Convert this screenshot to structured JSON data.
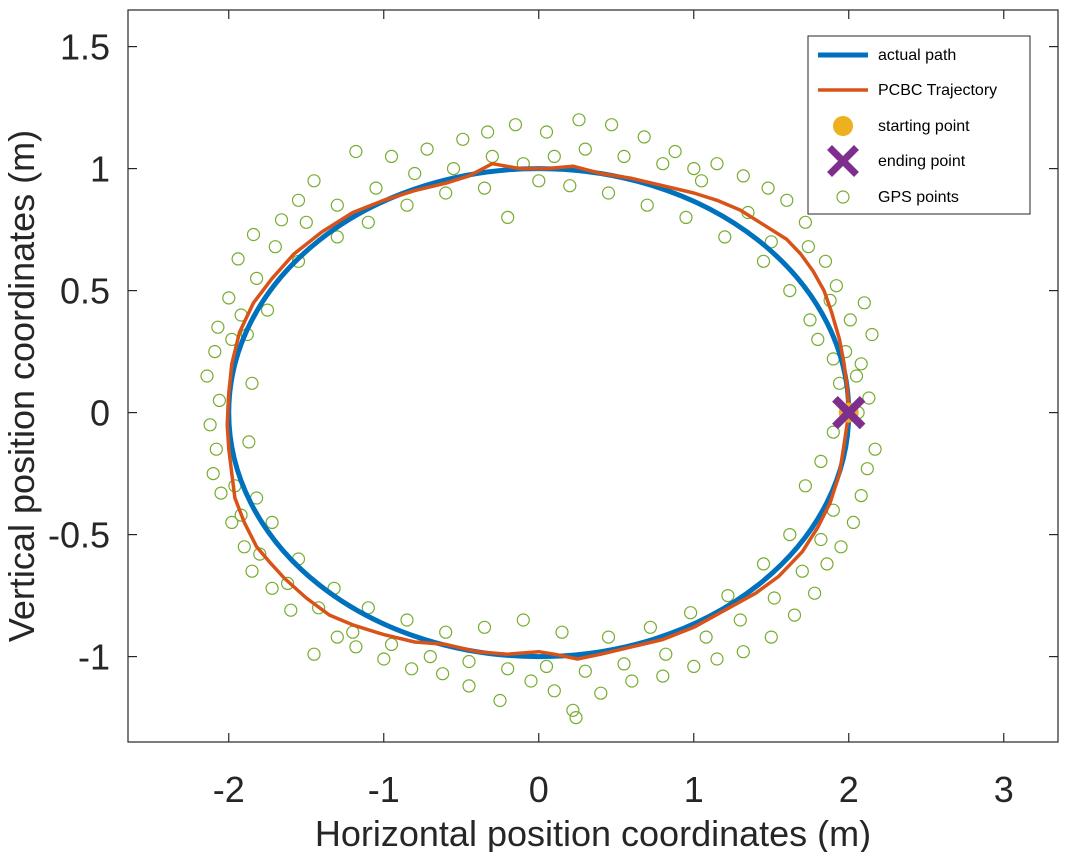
{
  "chart_data": {
    "type": "scatter",
    "xlabel": "Horizontal position coordinates (m)",
    "ylabel": "Vertical position coordinates (m)",
    "xlim": [
      -2.65,
      3.35
    ],
    "ylim": [
      -1.35,
      1.65
    ],
    "xticks": [
      -2,
      -1,
      0,
      1,
      2,
      3
    ],
    "yticks": [
      -1,
      -0.5,
      0,
      0.5,
      1,
      1.5
    ],
    "xtick_labels": [
      "-2",
      "-1",
      "0",
      "1",
      "2",
      "3"
    ],
    "ytick_labels": [
      "-1",
      "-0.5",
      "0",
      "0.5",
      "1",
      "1.5"
    ],
    "grid": false,
    "box": true,
    "legend_position": "top-right",
    "colors": {
      "actual_path": "#0072BD",
      "pcbc": "#D95319",
      "start": "#EDB120",
      "end": "#7E2F8E",
      "gps": "#77AC30",
      "axes": "#262626"
    },
    "series": [
      {
        "name": "actual path",
        "kind": "line",
        "shape": "ellipse",
        "center": [
          0,
          0
        ],
        "radius_x": 2,
        "radius_y": 1
      },
      {
        "name": "PCBC Trajectory",
        "kind": "line",
        "points": [
          [
            2.0,
            0.0
          ],
          [
            1.99,
            0.1
          ],
          [
            1.97,
            0.2
          ],
          [
            1.94,
            0.3
          ],
          [
            1.89,
            0.41
          ],
          [
            1.84,
            0.5
          ],
          [
            1.77,
            0.58
          ],
          [
            1.69,
            0.65
          ],
          [
            1.6,
            0.71
          ],
          [
            1.45,
            0.77
          ],
          [
            1.3,
            0.83
          ],
          [
            1.15,
            0.87
          ],
          [
            1.0,
            0.9
          ],
          [
            0.8,
            0.93
          ],
          [
            0.6,
            0.96
          ],
          [
            0.4,
            0.98
          ],
          [
            0.22,
            1.01
          ],
          [
            0.05,
            1.0
          ],
          [
            -0.12,
            1.0
          ],
          [
            -0.3,
            1.02
          ],
          [
            -0.45,
            0.97
          ],
          [
            -0.6,
            0.94
          ],
          [
            -0.8,
            0.91
          ],
          [
            -1.0,
            0.87
          ],
          [
            -1.2,
            0.82
          ],
          [
            -1.4,
            0.74
          ],
          [
            -1.58,
            0.65
          ],
          [
            -1.72,
            0.55
          ],
          [
            -1.84,
            0.45
          ],
          [
            -1.93,
            0.33
          ],
          [
            -1.98,
            0.2
          ],
          [
            -2.0,
            0.08
          ],
          [
            -2.01,
            -0.05
          ],
          [
            -2.0,
            -0.15
          ],
          [
            -1.98,
            -0.25
          ],
          [
            -1.96,
            -0.35
          ],
          [
            -1.9,
            -0.45
          ],
          [
            -1.82,
            -0.55
          ],
          [
            -1.74,
            -0.61
          ],
          [
            -1.64,
            -0.68
          ],
          [
            -1.5,
            -0.76
          ],
          [
            -1.35,
            -0.83
          ],
          [
            -1.2,
            -0.87
          ],
          [
            -1.0,
            -0.91
          ],
          [
            -0.8,
            -0.94
          ],
          [
            -0.6,
            -0.95
          ],
          [
            -0.4,
            -0.98
          ],
          [
            -0.2,
            -0.99
          ],
          [
            0.0,
            -0.98
          ],
          [
            0.1,
            -0.99
          ],
          [
            0.25,
            -1.01
          ],
          [
            0.4,
            -0.99
          ],
          [
            0.6,
            -0.96
          ],
          [
            0.8,
            -0.93
          ],
          [
            1.0,
            -0.88
          ],
          [
            1.2,
            -0.81
          ],
          [
            1.4,
            -0.74
          ],
          [
            1.55,
            -0.67
          ],
          [
            1.7,
            -0.57
          ],
          [
            1.8,
            -0.47
          ],
          [
            1.88,
            -0.37
          ],
          [
            1.94,
            -0.25
          ],
          [
            1.97,
            -0.13
          ],
          [
            2.0,
            0.0
          ]
        ]
      },
      {
        "name": "starting point",
        "kind": "marker",
        "marker": "filled-circle",
        "points": [
          [
            2.0,
            0.0
          ]
        ]
      },
      {
        "name": "ending point",
        "kind": "marker",
        "marker": "x",
        "points": [
          [
            2.0,
            0.0
          ]
        ]
      },
      {
        "name": "GPS points",
        "kind": "scatter",
        "marker": "open-circle",
        "points": [
          [
            2.06,
            0.0
          ],
          [
            2.13,
            0.06
          ],
          [
            2.17,
            -0.15
          ],
          [
            1.98,
            0.25
          ],
          [
            2.01,
            0.38
          ],
          [
            1.88,
            0.46
          ],
          [
            1.92,
            0.52
          ],
          [
            1.85,
            0.62
          ],
          [
            1.74,
            0.68
          ],
          [
            1.72,
            0.78
          ],
          [
            1.6,
            0.87
          ],
          [
            1.48,
            0.92
          ],
          [
            1.32,
            0.97
          ],
          [
            1.15,
            1.02
          ],
          [
            1.0,
            1.0
          ],
          [
            0.88,
            1.07
          ],
          [
            0.68,
            1.13
          ],
          [
            0.47,
            1.18
          ],
          [
            0.26,
            1.2
          ],
          [
            0.05,
            1.15
          ],
          [
            -0.15,
            1.18
          ],
          [
            -0.33,
            1.15
          ],
          [
            -0.49,
            1.12
          ],
          [
            -0.72,
            1.08
          ],
          [
            -0.95,
            1.05
          ],
          [
            -1.18,
            1.07
          ],
          [
            -1.45,
            0.95
          ],
          [
            -1.55,
            0.87
          ],
          [
            -1.66,
            0.79
          ],
          [
            -1.84,
            0.73
          ],
          [
            -1.94,
            0.63
          ],
          [
            -2.0,
            0.47
          ],
          [
            -2.07,
            0.35
          ],
          [
            -2.09,
            0.25
          ],
          [
            -2.14,
            0.15
          ],
          [
            -2.06,
            0.05
          ],
          [
            -2.12,
            -0.05
          ],
          [
            -2.08,
            -0.15
          ],
          [
            -2.1,
            -0.25
          ],
          [
            -2.05,
            -0.33
          ],
          [
            -1.98,
            -0.45
          ],
          [
            -1.9,
            -0.55
          ],
          [
            -1.85,
            -0.65
          ],
          [
            -1.72,
            -0.72
          ],
          [
            -1.6,
            -0.81
          ],
          [
            -1.45,
            -0.99
          ],
          [
            -1.3,
            -0.92
          ],
          [
            -1.18,
            -0.96
          ],
          [
            -1.0,
            -1.01
          ],
          [
            -0.82,
            -1.05
          ],
          [
            -0.62,
            -1.07
          ],
          [
            -0.45,
            -1.12
          ],
          [
            -0.25,
            -1.18
          ],
          [
            -0.05,
            -1.1
          ],
          [
            0.1,
            -1.14
          ],
          [
            0.22,
            -1.22
          ],
          [
            0.24,
            -1.25
          ],
          [
            0.4,
            -1.15
          ],
          [
            0.6,
            -1.1
          ],
          [
            0.8,
            -1.08
          ],
          [
            1.0,
            -1.04
          ],
          [
            1.15,
            -1.01
          ],
          [
            1.32,
            -0.98
          ],
          [
            1.5,
            -0.92
          ],
          [
            1.65,
            -0.83
          ],
          [
            1.78,
            -0.74
          ],
          [
            1.86,
            -0.62
          ],
          [
            1.95,
            -0.55
          ],
          [
            2.03,
            -0.45
          ],
          [
            2.08,
            -0.34
          ],
          [
            2.12,
            -0.23
          ],
          [
            2.05,
            0.15
          ],
          [
            2.15,
            0.32
          ],
          [
            1.8,
            0.3
          ],
          [
            1.9,
            0.22
          ],
          [
            1.82,
            -0.2
          ],
          [
            1.5,
            0.7
          ],
          [
            1.35,
            0.82
          ],
          [
            1.05,
            0.95
          ],
          [
            0.8,
            1.02
          ],
          [
            0.55,
            1.05
          ],
          [
            0.3,
            1.08
          ],
          [
            0.1,
            1.05
          ],
          [
            -0.1,
            1.02
          ],
          [
            -0.3,
            1.05
          ],
          [
            -0.55,
            1.0
          ],
          [
            -0.8,
            0.98
          ],
          [
            -1.05,
            0.92
          ],
          [
            -1.3,
            0.85
          ],
          [
            -1.5,
            0.78
          ],
          [
            -1.7,
            0.68
          ],
          [
            -1.82,
            0.55
          ],
          [
            -1.92,
            0.4
          ],
          [
            -1.98,
            0.3
          ],
          [
            -1.96,
            -0.3
          ],
          [
            -1.92,
            -0.42
          ],
          [
            -1.8,
            -0.58
          ],
          [
            -1.62,
            -0.7
          ],
          [
            -1.42,
            -0.8
          ],
          [
            -1.2,
            -0.9
          ],
          [
            -0.95,
            -0.95
          ],
          [
            -0.7,
            -1.0
          ],
          [
            -0.45,
            -1.02
          ],
          [
            -0.2,
            -1.05
          ],
          [
            0.05,
            -1.04
          ],
          [
            0.3,
            -1.06
          ],
          [
            0.55,
            -1.03
          ],
          [
            0.82,
            -0.99
          ],
          [
            1.08,
            -0.92
          ],
          [
            1.3,
            -0.85
          ],
          [
            1.52,
            -0.76
          ],
          [
            1.7,
            -0.65
          ],
          [
            1.82,
            -0.52
          ],
          [
            1.9,
            -0.4
          ],
          [
            2.1,
            0.45
          ],
          [
            2.08,
            0.2
          ],
          [
            1.94,
            0.12
          ],
          [
            1.9,
            -0.08
          ],
          [
            -1.88,
            0.32
          ],
          [
            -1.85,
            0.12
          ],
          [
            -1.87,
            -0.12
          ],
          [
            -1.82,
            -0.35
          ],
          [
            -1.75,
            0.42
          ],
          [
            -1.55,
            0.62
          ],
          [
            -1.3,
            0.72
          ],
          [
            -1.1,
            0.78
          ],
          [
            -0.85,
            0.85
          ],
          [
            -0.6,
            0.9
          ],
          [
            -0.35,
            0.92
          ],
          [
            -0.2,
            0.8
          ],
          [
            0.0,
            0.95
          ],
          [
            0.2,
            0.93
          ],
          [
            0.45,
            0.9
          ],
          [
            0.7,
            0.85
          ],
          [
            0.95,
            0.8
          ],
          [
            1.2,
            0.72
          ],
          [
            1.45,
            0.62
          ],
          [
            1.62,
            0.5
          ],
          [
            1.75,
            0.38
          ],
          [
            1.72,
            -0.3
          ],
          [
            1.62,
            -0.5
          ],
          [
            1.45,
            -0.62
          ],
          [
            1.22,
            -0.75
          ],
          [
            0.98,
            -0.82
          ],
          [
            0.72,
            -0.88
          ],
          [
            0.45,
            -0.92
          ],
          [
            0.15,
            -0.9
          ],
          [
            -0.1,
            -0.85
          ],
          [
            -0.35,
            -0.88
          ],
          [
            -0.6,
            -0.9
          ],
          [
            -0.85,
            -0.85
          ],
          [
            -1.1,
            -0.8
          ],
          [
            -1.32,
            -0.72
          ],
          [
            -1.55,
            -0.6
          ],
          [
            -1.72,
            -0.45
          ]
        ]
      }
    ],
    "legend": [
      "actual path",
      "PCBC Trajectory",
      "starting point",
      "ending point",
      "GPS points"
    ]
  }
}
